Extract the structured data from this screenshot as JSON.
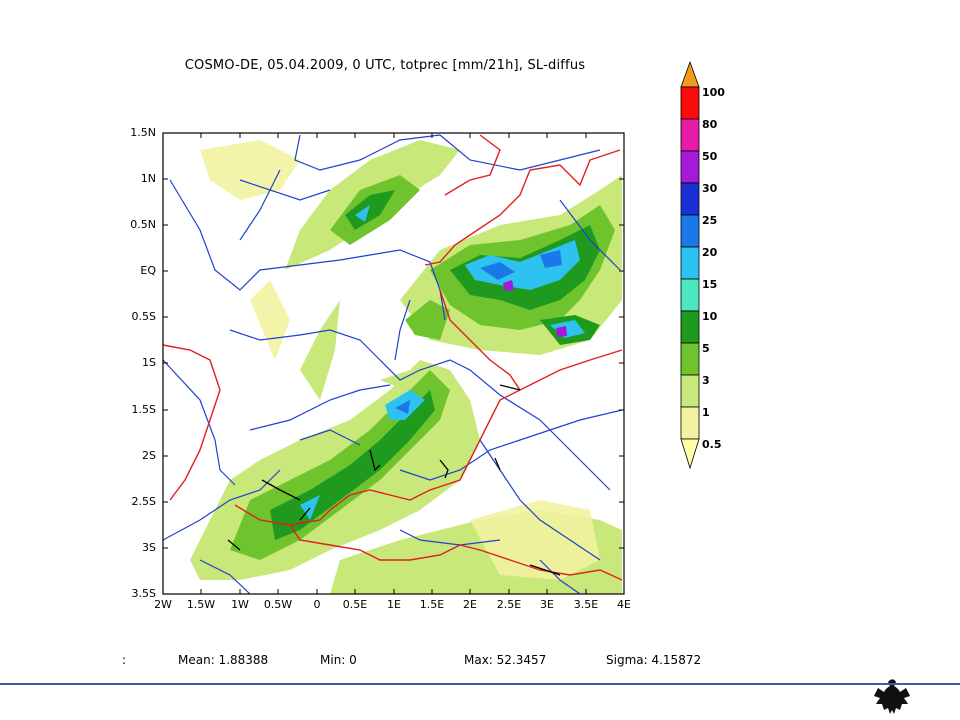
{
  "title": "COSMO-DE, 05.04.2009, 0 UTC, totprec [mm/21h], SL-diffus",
  "axes": {
    "y_ticks": [
      "1.5N",
      "1N",
      "0.5N",
      "EQ",
      "0.5S",
      "1S",
      "1.5S",
      "2S",
      "2.5S",
      "3S",
      "3.5S"
    ],
    "x_ticks": [
      "2W",
      "1.5W",
      "1W",
      "0.5W",
      "0",
      "0.5E",
      "1E",
      "1.5E",
      "2E",
      "2.5E",
      "3E",
      "3.5E",
      "4E"
    ]
  },
  "colorbar": {
    "labels": [
      "100",
      "80",
      "50",
      "30",
      "25",
      "20",
      "15",
      "10",
      "5",
      "3",
      "1",
      "0.5"
    ],
    "colors": [
      "#f29a1c",
      "#ff0a0a",
      "#e81aa8",
      "#a51ad6",
      "#1a2fd6",
      "#1a78e8",
      "#2ec2f0",
      "#4de8c0",
      "#1f9a1f",
      "#6fc42e",
      "#c8e87a",
      "#f2f2a0",
      "#ffffa8"
    ]
  },
  "stats": {
    "prefix": ":",
    "mean": "Mean: 1.88388",
    "min": "Min: 0",
    "max": "Max: 52.3457",
    "sigma": "Sigma: 4.15872"
  },
  "chart_data": {
    "type": "heatmap",
    "title": "COSMO-DE, 05.04.2009, 0 UTC, totprec [mm/21h], SL-diffus",
    "xlim": [
      -2,
      4
    ],
    "ylim": [
      -3.5,
      1.5
    ],
    "color_levels": [
      0.5,
      1,
      3,
      5,
      10,
      15,
      20,
      25,
      30,
      50,
      80,
      100
    ],
    "mean": 1.88388,
    "min": 0,
    "max": 52.3457,
    "sigma": 4.15872
  }
}
